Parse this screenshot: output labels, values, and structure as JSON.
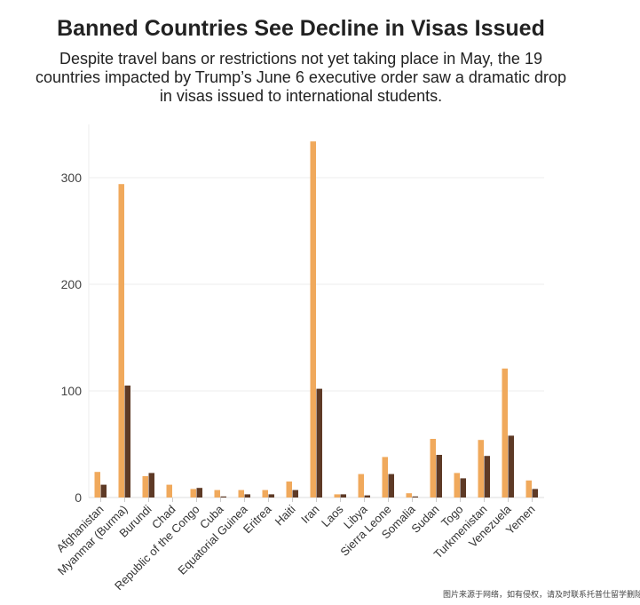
{
  "chart_data": {
    "type": "bar",
    "title": "Banned Countries See Decline in Visas Issued",
    "subtitle": "Despite travel bans or restrictions not yet taking place in May, the 19 countries impacted by Trump’s June 6 executive order saw a dramatic drop in visas issued to international students.",
    "xlabel": "",
    "ylabel": "",
    "ylim": [
      0,
      345
    ],
    "yticks": [
      "0",
      "100",
      "200",
      "300"
    ],
    "grid": true,
    "categories": [
      "Afghanistan",
      "Myanmar (Burma)",
      "Burundi",
      "Chad",
      "Republic of the Congo",
      "Cuba",
      "Equatorial Guinea",
      "Eritrea",
      "Haiti",
      "Iran",
      "Laos",
      "Libya",
      "Sierra Leone",
      "Somalia",
      "Sudan",
      "Togo",
      "Turkmenistan",
      "Venezuela",
      "Yemen"
    ],
    "series": [
      {
        "color": "#F0A95C",
        "values": [
          24,
          294,
          20,
          12,
          8,
          7,
          7,
          7,
          15,
          334,
          3,
          22,
          38,
          4,
          55,
          23,
          54,
          121,
          16
        ]
      },
      {
        "color": "#5E3A26",
        "values": [
          12,
          105,
          23,
          0,
          9,
          1,
          3,
          3,
          7,
          102,
          3,
          2,
          22,
          1,
          40,
          18,
          39,
          58,
          8
        ]
      }
    ]
  },
  "watermark": "图片来源于网络，如有侵权，请及时联系托普仕留学删除"
}
